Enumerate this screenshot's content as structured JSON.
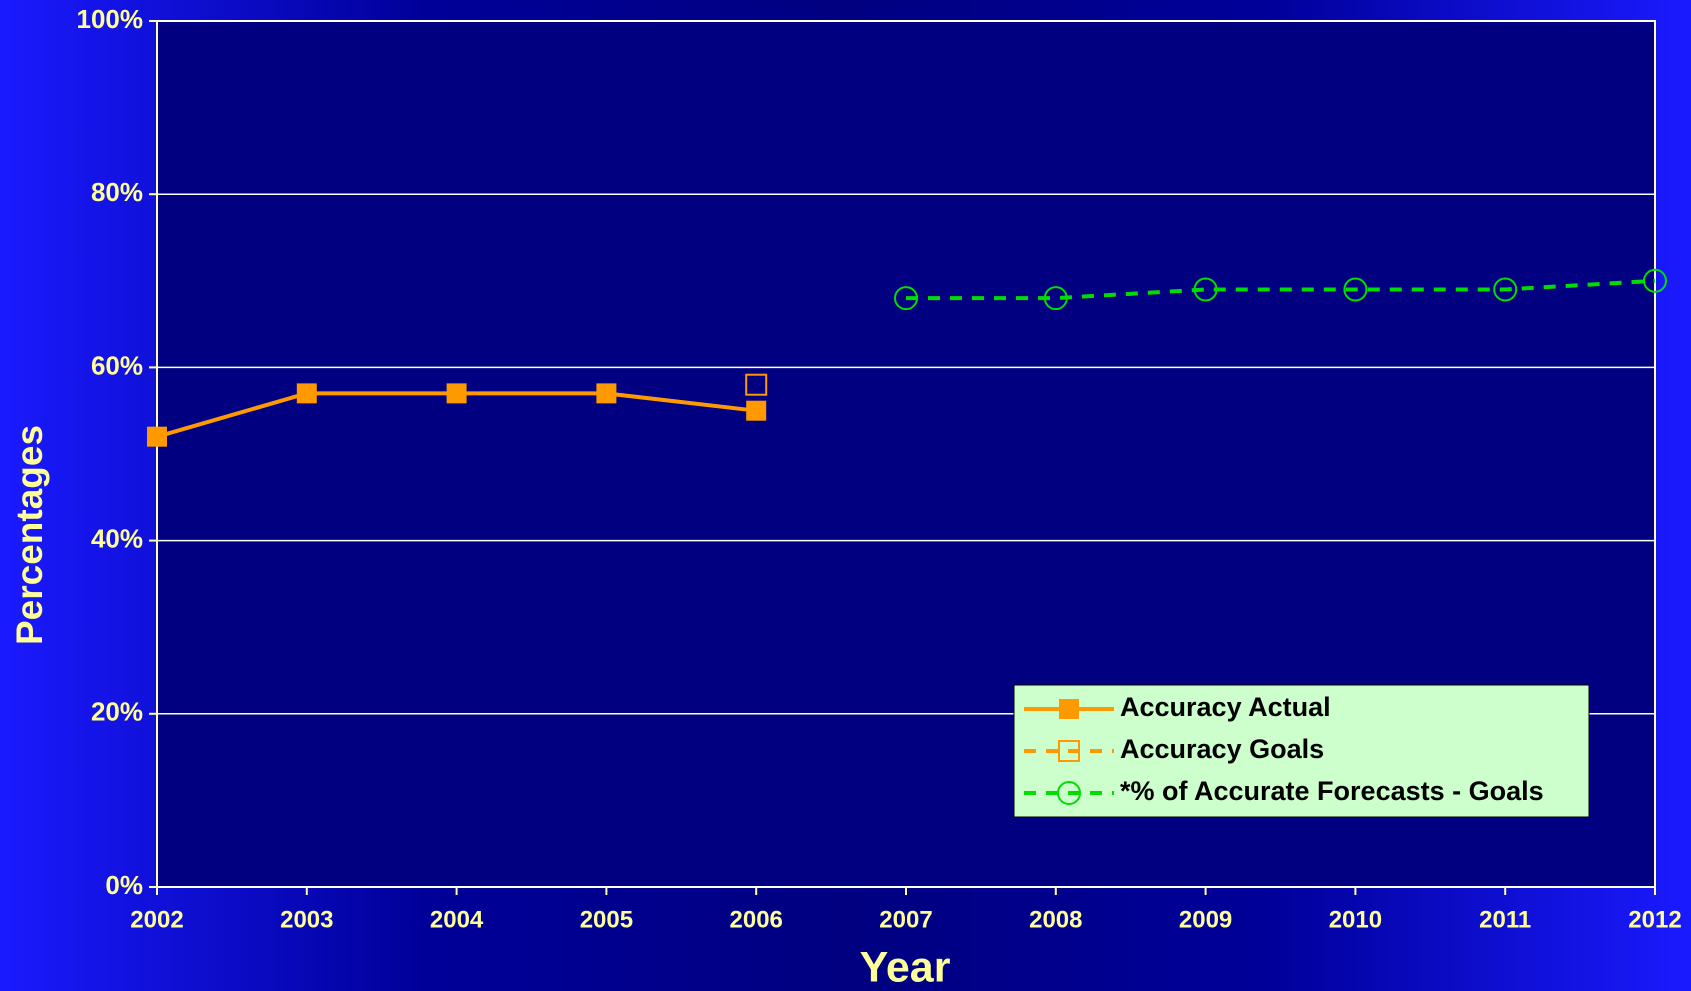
{
  "chart_data": {
    "type": "line",
    "x_label": "Year",
    "y_label": "Percentages",
    "x": [
      2002,
      2003,
      2004,
      2005,
      2006,
      2007,
      2008,
      2009,
      2010,
      2011,
      2012
    ],
    "xlim": [
      2002,
      2012
    ],
    "xticks": [
      2002,
      2003,
      2004,
      2005,
      2006,
      2007,
      2008,
      2009,
      2010,
      2011,
      2012
    ],
    "ylim": [
      0,
      100
    ],
    "yticks": [
      {
        "value": 0,
        "label": "0%"
      },
      {
        "value": 20,
        "label": "20%"
      },
      {
        "value": 40,
        "label": "40%"
      },
      {
        "value": 60,
        "label": "60%"
      },
      {
        "value": 80,
        "label": "80%"
      },
      {
        "value": 100,
        "label": "100%"
      }
    ],
    "grid": true,
    "legend": "lower right",
    "series": [
      {
        "name": "Accuracy Actual",
        "color": "#ff9900",
        "line_style": "solid",
        "marker": "filled-square",
        "values": [
          52,
          57,
          57,
          57,
          55,
          null,
          null,
          null,
          null,
          null,
          null
        ]
      },
      {
        "name": "Accuracy Goals",
        "color": "#ff9900",
        "line_style": "dashed",
        "marker": "open-square",
        "values": [
          null,
          null,
          null,
          null,
          58,
          null,
          null,
          null,
          null,
          null,
          null
        ]
      },
      {
        "name": "*% of Accurate Forecasts - Goals",
        "color": "#00dd00",
        "line_style": "dashed",
        "marker": "open-circle",
        "values": [
          null,
          null,
          null,
          null,
          null,
          68,
          68,
          69,
          69,
          69,
          70
        ]
      }
    ]
  }
}
